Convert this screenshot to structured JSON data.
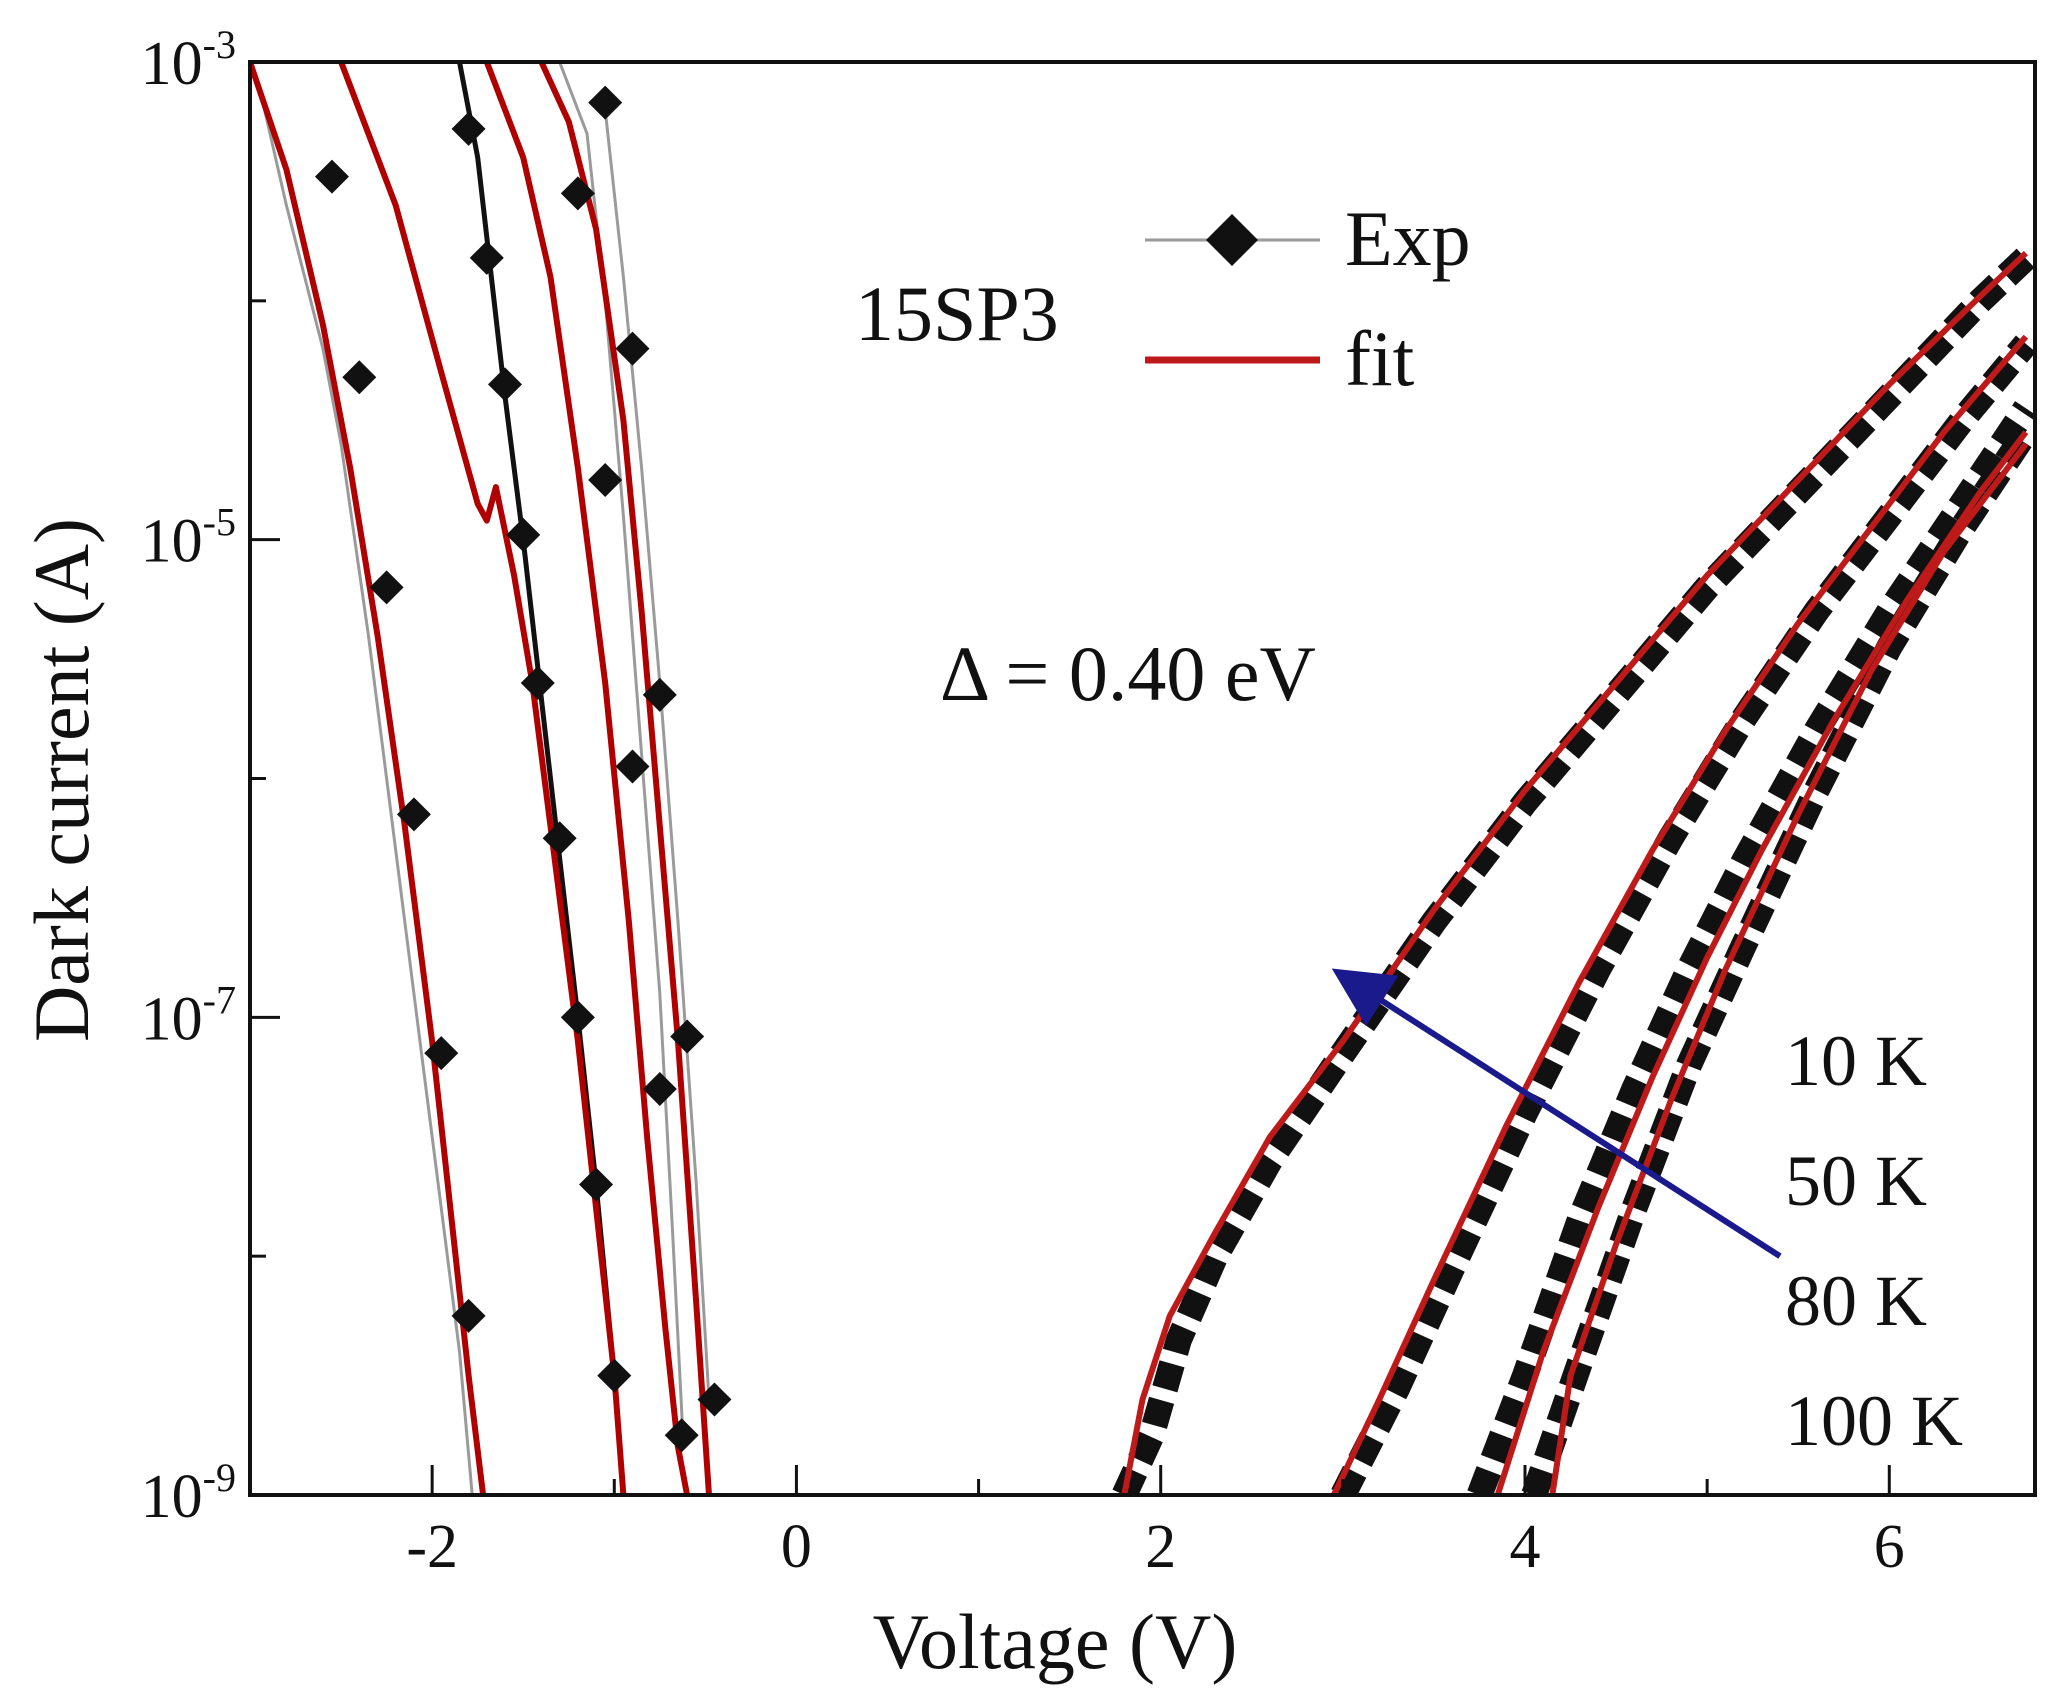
{
  "chart_data": {
    "type": "line",
    "title": "",
    "xlabel": "Voltage (V)",
    "ylabel": "Dark current (A)",
    "xlim": [
      -3,
      6.8
    ],
    "ylim_log10": [
      -9,
      -3
    ],
    "yscale": "log",
    "grid": false,
    "x_ticks": [
      -2,
      0,
      2,
      4,
      6
    ],
    "x_tick_labels": [
      "-2",
      "0",
      "2",
      "4",
      "6"
    ],
    "y_ticks_log10": [
      -9,
      -7,
      -5,
      -3
    ],
    "y_tick_labels": [
      {
        "base": "10",
        "exp": "-9"
      },
      {
        "base": "10",
        "exp": "-7"
      },
      {
        "base": "10",
        "exp": "-5"
      },
      {
        "base": "10",
        "exp": "-3"
      }
    ],
    "y_minor_ticks_log10": [
      -8,
      -6,
      -4
    ],
    "annotations": {
      "sample": "15SP3",
      "delta": "Δ = 0.40 eV",
      "arrow_from": [
        5.4,
        -8.0
      ],
      "arrow_to": [
        3.05,
        -6.85
      ]
    },
    "legend": {
      "position": "top-center",
      "entries": [
        {
          "label": "Exp",
          "style": "diamond-line",
          "color": "#111111"
        },
        {
          "label": "fit",
          "style": "line",
          "color": "#bf1a1a"
        }
      ]
    },
    "temperature_labels": [
      "10 K",
      "50 K",
      "80 K",
      "100 K"
    ],
    "colors": {
      "exp": "#111111",
      "fit": "#bf1a1a",
      "fit_negative": "#b00000",
      "arrow": "#1a1a8c",
      "exp_thin": "#9a9a9a"
    },
    "series": [
      {
        "name": "Exp",
        "branch": "negative",
        "curve": 1,
        "x": [
          -2.95,
          -2.8,
          -2.6,
          -2.5,
          -2.35,
          -2.2,
          -2.05,
          -1.95,
          -1.85,
          -1.78
        ],
        "log10_y": [
          -3.1,
          -3.6,
          -4.2,
          -4.6,
          -5.4,
          -6.3,
          -7.2,
          -7.8,
          -8.4,
          -9.0
        ],
        "markers": [
          [
            -2.55,
            -3.48
          ],
          [
            -2.4,
            -4.32
          ],
          [
            -2.25,
            -5.2
          ],
          [
            -2.1,
            -6.15
          ],
          [
            -1.95,
            -7.15
          ],
          [
            -1.8,
            -8.25
          ]
        ]
      },
      {
        "name": "Exp",
        "branch": "negative",
        "curve": 2,
        "x": [
          -1.85,
          -1.75,
          -1.6,
          -1.5,
          -1.35,
          -1.2,
          -1.1,
          -1.0,
          -0.95
        ],
        "log10_y": [
          -3.0,
          -3.4,
          -4.4,
          -5.0,
          -6.0,
          -7.0,
          -7.7,
          -8.5,
          -9.0
        ],
        "markers": [
          [
            -1.8,
            -3.28
          ],
          [
            -1.7,
            -3.82
          ],
          [
            -1.6,
            -4.35
          ],
          [
            -1.5,
            -4.98
          ],
          [
            -1.42,
            -5.6
          ],
          [
            -1.3,
            -6.25
          ],
          [
            -1.2,
            -7.0
          ],
          [
            -1.1,
            -7.7
          ],
          [
            -1.0,
            -8.5
          ]
        ]
      },
      {
        "name": "Exp",
        "branch": "negative",
        "curve": 3,
        "x": [
          -1.3,
          -1.15,
          -1.05,
          -0.95,
          -0.85,
          -0.75,
          -0.68,
          -0.62
        ],
        "log10_y": [
          -3.0,
          -3.3,
          -4.0,
          -4.9,
          -5.9,
          -6.9,
          -7.9,
          -8.8
        ],
        "markers": [
          [
            -1.2,
            -3.55
          ],
          [
            -1.05,
            -4.75
          ],
          [
            -0.9,
            -5.95
          ],
          [
            -0.75,
            -7.3
          ],
          [
            -0.63,
            -8.75
          ]
        ]
      },
      {
        "name": "Exp",
        "branch": "negative",
        "curve": 4,
        "x": [
          -1.05,
          -0.95,
          -0.85,
          -0.75,
          -0.65,
          -0.55,
          -0.48
        ],
        "log10_y": [
          -3.2,
          -3.9,
          -4.7,
          -5.6,
          -6.6,
          -7.7,
          -8.6
        ],
        "markers": [
          [
            -1.05,
            -3.17
          ],
          [
            -0.9,
            -4.2
          ],
          [
            -0.75,
            -5.65
          ],
          [
            -0.6,
            -7.08
          ],
          [
            -0.45,
            -8.6
          ]
        ]
      },
      {
        "name": "fit",
        "branch": "negative",
        "curve": 1,
        "x": [
          -3.0,
          -2.8,
          -2.6,
          -2.45,
          -2.3,
          -2.15,
          -2.0,
          -1.9,
          -1.8,
          -1.72
        ],
        "log10_y": [
          -3.0,
          -3.45,
          -4.1,
          -4.7,
          -5.4,
          -6.2,
          -7.1,
          -7.8,
          -8.5,
          -9.0
        ]
      },
      {
        "name": "fit",
        "branch": "negative",
        "curve": 2,
        "x": [
          -2.5,
          -2.2,
          -1.95,
          -1.75,
          -1.7,
          -1.65,
          -1.55,
          -1.45,
          -1.3,
          -1.2,
          -1.1,
          -1.0,
          -0.95
        ],
        "log10_y": [
          -3.0,
          -3.6,
          -4.3,
          -4.85,
          -4.92,
          -4.78,
          -5.15,
          -5.6,
          -6.5,
          -7.1,
          -7.8,
          -8.5,
          -9.0
        ]
      },
      {
        "name": "fit",
        "branch": "negative",
        "curve": 3,
        "x": [
          -1.7,
          -1.5,
          -1.35,
          -1.2,
          -1.05,
          -0.92,
          -0.82,
          -0.72,
          -0.65,
          -0.6
        ],
        "log10_y": [
          -3.0,
          -3.4,
          -3.9,
          -4.7,
          -5.6,
          -6.6,
          -7.5,
          -8.3,
          -8.8,
          -9.0
        ]
      },
      {
        "name": "fit",
        "branch": "negative",
        "curve": 4,
        "x": [
          -1.4,
          -1.25,
          -1.1,
          -0.95,
          -0.85,
          -0.75,
          -0.65,
          -0.55,
          -0.48
        ],
        "log10_y": [
          -3.0,
          -3.25,
          -3.7,
          -4.5,
          -5.3,
          -6.2,
          -7.1,
          -8.2,
          -9.0
        ]
      },
      {
        "name": "Exp",
        "branch": "positive",
        "curve": 1,
        "x": [
          1.8,
          1.95,
          2.1,
          2.3,
          2.6,
          3.0,
          3.5,
          4.0,
          4.5,
          5.0,
          5.5,
          6.0,
          6.5,
          6.75
        ],
        "log10_y": [
          -9.0,
          -8.75,
          -8.35,
          -8.0,
          -7.6,
          -7.15,
          -6.6,
          -6.1,
          -5.65,
          -5.2,
          -4.8,
          -4.4,
          -4.0,
          -3.82
        ]
      },
      {
        "name": "Exp",
        "branch": "positive",
        "curve": 2,
        "x": [
          3.0,
          3.3,
          3.6,
          4.0,
          4.4,
          4.8,
          5.2,
          5.6,
          6.0,
          6.4,
          6.75
        ],
        "log10_y": [
          -9.0,
          -8.55,
          -8.05,
          -7.4,
          -6.8,
          -6.25,
          -5.75,
          -5.3,
          -4.9,
          -4.5,
          -4.18
        ]
      },
      {
        "name": "Exp",
        "branch": "positive",
        "curve": 3,
        "x": [
          3.75,
          4.0,
          4.3,
          4.6,
          4.9,
          5.2,
          5.6,
          6.0,
          6.4,
          6.75
        ],
        "log10_y": [
          -9.0,
          -8.5,
          -7.85,
          -7.3,
          -6.8,
          -6.35,
          -5.8,
          -5.3,
          -4.85,
          -4.45
        ]
      },
      {
        "name": "Exp",
        "branch": "positive",
        "curve": 4,
        "x": [
          4.05,
          4.3,
          4.6,
          4.9,
          5.2,
          5.6,
          6.0,
          6.4,
          6.75
        ],
        "log10_y": [
          -9.0,
          -8.45,
          -7.8,
          -7.2,
          -6.7,
          -6.05,
          -5.45,
          -4.95,
          -4.55
        ]
      },
      {
        "name": "fit",
        "branch": "positive",
        "curve": 1,
        "x": [
          1.8,
          1.9,
          2.05,
          2.3,
          2.6,
          3.0,
          3.5,
          4.0,
          4.5,
          5.0,
          5.5,
          6.0,
          6.5,
          6.75
        ],
        "log10_y": [
          -9.0,
          -8.6,
          -8.25,
          -7.9,
          -7.5,
          -7.1,
          -6.55,
          -6.05,
          -5.6,
          -5.15,
          -4.75,
          -4.35,
          -3.98,
          -3.8
        ]
      },
      {
        "name": "fit",
        "branch": "positive",
        "curve": 2,
        "x": [
          2.95,
          3.2,
          3.5,
          3.9,
          4.3,
          4.7,
          5.1,
          5.5,
          5.9,
          6.3,
          6.75
        ],
        "log10_y": [
          -9.0,
          -8.6,
          -8.1,
          -7.45,
          -6.85,
          -6.3,
          -5.8,
          -5.35,
          -4.95,
          -4.55,
          -4.15
        ]
      },
      {
        "name": "fit",
        "branch": "positive",
        "curve": 3,
        "x": [
          3.85,
          4.1,
          4.4,
          4.7,
          5.0,
          5.3,
          5.7,
          6.1,
          6.5,
          6.75
        ],
        "log10_y": [
          -9.0,
          -8.4,
          -7.8,
          -7.25,
          -6.75,
          -6.3,
          -5.75,
          -5.25,
          -4.8,
          -4.55
        ]
      },
      {
        "name": "fit",
        "branch": "positive",
        "curve": 4,
        "x": [
          4.15,
          4.25,
          4.5,
          4.8,
          5.1,
          5.5,
          5.9,
          6.3,
          6.75
        ],
        "log10_y": [
          -9.0,
          -8.5,
          -7.95,
          -7.35,
          -6.8,
          -6.15,
          -5.55,
          -5.05,
          -4.6
        ]
      }
    ]
  }
}
